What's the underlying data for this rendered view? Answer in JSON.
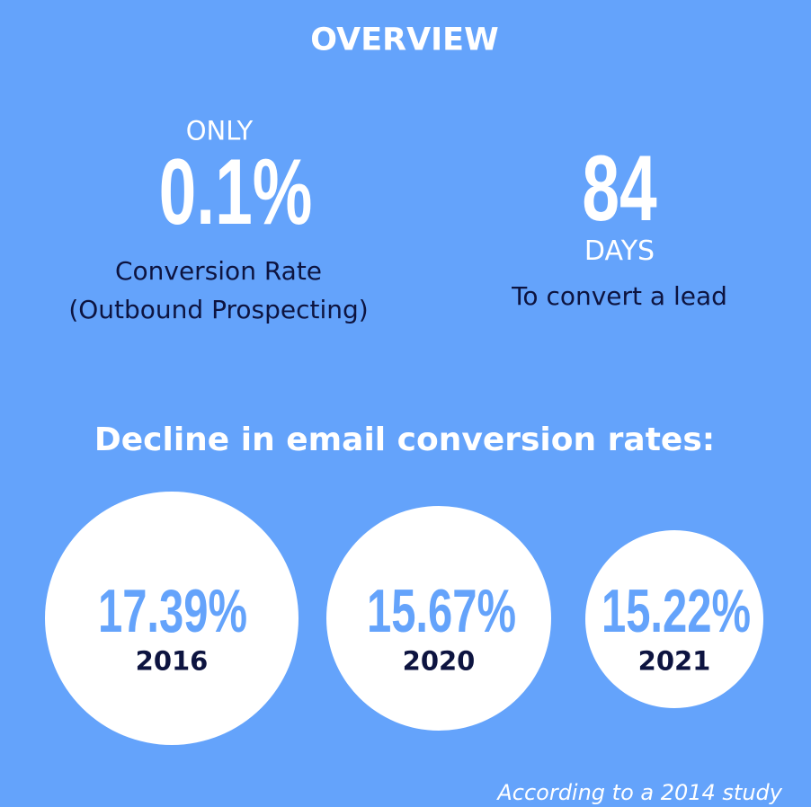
{
  "header": {
    "title": "OVERVIEW"
  },
  "stats": [
    {
      "prefix": "ONLY",
      "value": "0.1%",
      "label_lines": [
        "Conversion Rate",
        "(Outbound Prospecting)"
      ]
    },
    {
      "value": "84",
      "unit": "DAYS",
      "label": "To convert a lead"
    }
  ],
  "section": {
    "title": "Decline in email conversion rates:",
    "circles": [
      {
        "value": "17.39%",
        "year": "2016"
      },
      {
        "value": "15.67%",
        "year": "2020"
      },
      {
        "value": "15.22%",
        "year": "2021"
      }
    ]
  },
  "footnote": "According to a 2014 study"
}
